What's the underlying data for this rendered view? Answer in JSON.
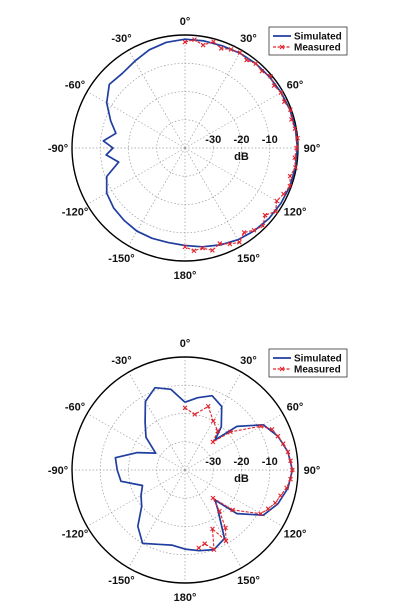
{
  "colors": {
    "simulated": "#1f3ea0",
    "measured": "#e0242c"
  },
  "chart_data": [
    {
      "type": "polar",
      "rlim": [
        -40,
        0
      ],
      "r_unit": "dB",
      "ring_labels": [
        "-30",
        "-20",
        "-10"
      ],
      "ring_values": [
        -30,
        -20,
        -10
      ],
      "angle_values": [
        0,
        30,
        60,
        90,
        120,
        150,
        180,
        -150,
        -120,
        -90,
        -60,
        -30
      ],
      "angle_labels": [
        "0°",
        "30°",
        "60°",
        "90°",
        "120°",
        "150°",
        "180°",
        "-150°",
        "-120°",
        "-90°",
        "-60°",
        "-30°"
      ],
      "grid": true,
      "legend_position": "top-right",
      "series": [
        {
          "name": "Simulated",
          "style": "solid",
          "theta": [
            0,
            10,
            20,
            30,
            40,
            50,
            60,
            70,
            80,
            90,
            100,
            110,
            120,
            130,
            140,
            150,
            160,
            170,
            180,
            190,
            200,
            210,
            220,
            230,
            240,
            250,
            258,
            265,
            270,
            275,
            282,
            290,
            300,
            310,
            320,
            330,
            340,
            350,
            360
          ],
          "values": [
            -1.5,
            -1.5,
            -1.5,
            -1.2,
            -1.0,
            -0.9,
            -0.7,
            -0.5,
            -0.3,
            -0.2,
            -0.3,
            -0.5,
            -0.8,
            -1.2,
            -1.8,
            -2.5,
            -3.5,
            -4.5,
            -5.5,
            -6.0,
            -6.0,
            -6.0,
            -6.5,
            -7.0,
            -8.0,
            -10.5,
            -16.0,
            -12.0,
            -14.5,
            -11.0,
            -15.0,
            -12.0,
            -8.0,
            -5.0,
            -5.5,
            -4.5,
            -3.0,
            -2.0,
            -1.5
          ]
        },
        {
          "name": "Measured",
          "style": "dashed-x",
          "theta": [
            0,
            5,
            10,
            15,
            20,
            25,
            30,
            35,
            40,
            45,
            50,
            55,
            60,
            65,
            70,
            75,
            80,
            85,
            90,
            95,
            100,
            105,
            110,
            115,
            120,
            125,
            130,
            135,
            140,
            145,
            150,
            155,
            160,
            165,
            170,
            175,
            180
          ],
          "values": [
            -2.5,
            -1.5,
            -3.0,
            -1.0,
            -2.5,
            -1.5,
            -1.0,
            -2.0,
            -1.0,
            -1.5,
            -0.5,
            -1.5,
            -0.8,
            -1.2,
            -0.3,
            -1.0,
            -0.5,
            0.0,
            -0.5,
            -1.0,
            -0.3,
            -1.5,
            -0.5,
            -1.5,
            -2.5,
            -0.8,
            -3.0,
            -1.0,
            -2.0,
            -3.5,
            -1.5,
            -2.5,
            -4.0,
            -2.5,
            -4.0,
            -3.5,
            -5.0
          ]
        }
      ]
    },
    {
      "type": "polar",
      "rlim": [
        -40,
        0
      ],
      "r_unit": "dB",
      "ring_labels": [
        "-30",
        "-20",
        "-10"
      ],
      "ring_values": [
        -30,
        -20,
        -10
      ],
      "angle_values": [
        0,
        30,
        60,
        90,
        120,
        150,
        180,
        -150,
        -120,
        -90,
        -60,
        -30
      ],
      "angle_labels": [
        "0°",
        "30°",
        "60°",
        "90°",
        "120°",
        "150°",
        "180°",
        "-150°",
        "-120°",
        "-90°",
        "-60°",
        "-30°"
      ],
      "grid": true,
      "legend_position": "top-right",
      "series": [
        {
          "name": "Simulated",
          "style": "solid",
          "theta": [
            0,
            10,
            20,
            30,
            40,
            45,
            50,
            60,
            70,
            80,
            90,
            100,
            110,
            120,
            130,
            135,
            140,
            150,
            160,
            170,
            180,
            190,
            200,
            210,
            220,
            230,
            240,
            250,
            260,
            270,
            280,
            290,
            300,
            310,
            320,
            330,
            340,
            350,
            360
          ],
          "values": [
            -16.0,
            -14.0,
            -12.0,
            -14.0,
            -20.0,
            -25.0,
            -16.0,
            -8.0,
            -5.0,
            -3.0,
            -2.0,
            -3.0,
            -5.0,
            -8.0,
            -16.0,
            -25.0,
            -22.0,
            -12.0,
            -10.0,
            -11.0,
            -12.0,
            -13.0,
            -12.0,
            -10.0,
            -14.0,
            -20.0,
            -22.0,
            -24.0,
            -17.0,
            -16.0,
            -15.0,
            -22.0,
            -28.0,
            -22.0,
            -18.0,
            -12.0,
            -9.0,
            -11.0,
            -16.0
          ]
        },
        {
          "name": "Measured",
          "style": "dashed-x",
          "theta": [
            0,
            10,
            20,
            30,
            40,
            45,
            50,
            60,
            65,
            70,
            75,
            80,
            85,
            90,
            95,
            100,
            105,
            110,
            115,
            120,
            130,
            135,
            140,
            145,
            150,
            155,
            160,
            165,
            170
          ],
          "values": [
            -18.0,
            -20.0,
            -16.0,
            -20.0,
            -22.0,
            -26.0,
            -19.0,
            -9.0,
            -6.0,
            -5.0,
            -4.0,
            -3.0,
            -2.5,
            -2.0,
            -2.5,
            -3.5,
            -5.0,
            -6.0,
            -7.5,
            -9.0,
            -18.0,
            -26.0,
            -21.0,
            -15.0,
            -11.0,
            -17.0,
            -10.0,
            -13.0,
            -12.0
          ]
        }
      ]
    }
  ]
}
